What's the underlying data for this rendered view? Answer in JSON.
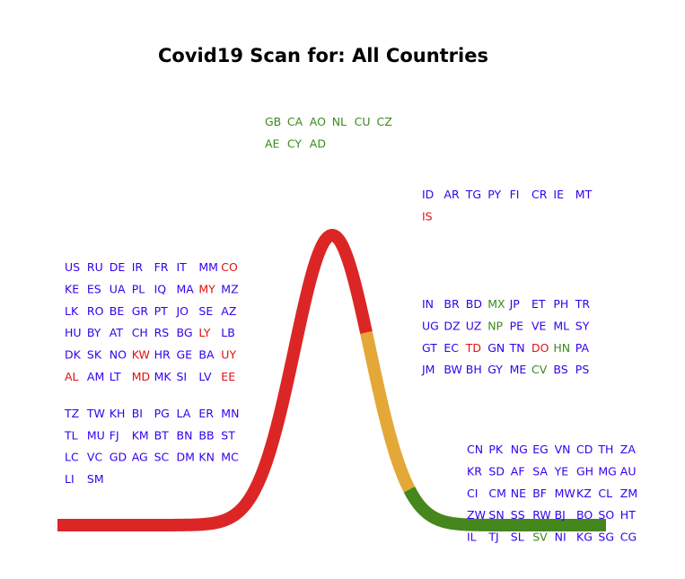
{
  "colors": {
    "rising": "#dc2626",
    "peak_descent": "#e3a837",
    "tail": "#45861d",
    "code_default": "#3300ee",
    "code_red": "#e01010",
    "code_green": "#3a8a1a"
  },
  "chart_data": {
    "type": "scatter",
    "title": "Covid19 Scan for: All Countries",
    "xlabel": "",
    "ylabel": "",
    "curve": {
      "shape": "epidemic-curve",
      "segments": [
        {
          "stage": "rising",
          "color": "#dc2626"
        },
        {
          "stage": "peak_descent",
          "color": "#e3a837"
        },
        {
          "stage": "tail",
          "color": "#45861d"
        }
      ]
    },
    "groups": [
      {
        "stage": "baseline-left",
        "columns": 8,
        "codes": [
          {
            "c": "US",
            "k": "b"
          },
          {
            "c": "RU",
            "k": "b"
          },
          {
            "c": "DE",
            "k": "b"
          },
          {
            "c": "IR",
            "k": "b"
          },
          {
            "c": "FR",
            "k": "b"
          },
          {
            "c": "IT",
            "k": "b"
          },
          {
            "c": "MM",
            "k": "b"
          },
          {
            "c": "CO",
            "k": "r"
          },
          {
            "c": "KE",
            "k": "b"
          },
          {
            "c": "ES",
            "k": "b"
          },
          {
            "c": "UA",
            "k": "b"
          },
          {
            "c": "PL",
            "k": "b"
          },
          {
            "c": "IQ",
            "k": "b"
          },
          {
            "c": "MA",
            "k": "b"
          },
          {
            "c": "MY",
            "k": "r"
          },
          {
            "c": "MZ",
            "k": "b"
          },
          {
            "c": "LK",
            "k": "b"
          },
          {
            "c": "RO",
            "k": "b"
          },
          {
            "c": "BE",
            "k": "b"
          },
          {
            "c": "GR",
            "k": "b"
          },
          {
            "c": "PT",
            "k": "b"
          },
          {
            "c": "JO",
            "k": "b"
          },
          {
            "c": "SE",
            "k": "b"
          },
          {
            "c": "AZ",
            "k": "b"
          },
          {
            "c": "HU",
            "k": "b"
          },
          {
            "c": "BY",
            "k": "b"
          },
          {
            "c": "AT",
            "k": "b"
          },
          {
            "c": "CH",
            "k": "b"
          },
          {
            "c": "RS",
            "k": "b"
          },
          {
            "c": "BG",
            "k": "b"
          },
          {
            "c": "LY",
            "k": "r"
          },
          {
            "c": "LB",
            "k": "b"
          },
          {
            "c": "DK",
            "k": "b"
          },
          {
            "c": "SK",
            "k": "b"
          },
          {
            "c": "NO",
            "k": "b"
          },
          {
            "c": "KW",
            "k": "r"
          },
          {
            "c": "HR",
            "k": "b"
          },
          {
            "c": "GE",
            "k": "b"
          },
          {
            "c": "BA",
            "k": "b"
          },
          {
            "c": "UY",
            "k": "r"
          },
          {
            "c": "AL",
            "k": "r"
          },
          {
            "c": "AM",
            "k": "b"
          },
          {
            "c": "LT",
            "k": "b"
          },
          {
            "c": "MD",
            "k": "r"
          },
          {
            "c": "MK",
            "k": "b"
          },
          {
            "c": "SI",
            "k": "b"
          },
          {
            "c": "LV",
            "k": "b"
          },
          {
            "c": "EE",
            "k": "r"
          }
        ]
      },
      {
        "stage": "baseline-left-lower",
        "columns": 8,
        "codes": [
          {
            "c": "TZ",
            "k": "b"
          },
          {
            "c": "TW",
            "k": "b"
          },
          {
            "c": "KH",
            "k": "b"
          },
          {
            "c": "BI",
            "k": "b"
          },
          {
            "c": "PG",
            "k": "b"
          },
          {
            "c": "LA",
            "k": "b"
          },
          {
            "c": "ER",
            "k": "b"
          },
          {
            "c": "MN",
            "k": "b"
          },
          {
            "c": "TL",
            "k": "b"
          },
          {
            "c": "MU",
            "k": "b"
          },
          {
            "c": "FJ",
            "k": "b"
          },
          {
            "c": "KM",
            "k": "b"
          },
          {
            "c": "BT",
            "k": "b"
          },
          {
            "c": "BN",
            "k": "b"
          },
          {
            "c": "BB",
            "k": "b"
          },
          {
            "c": "ST",
            "k": "b"
          },
          {
            "c": "LC",
            "k": "b"
          },
          {
            "c": "VC",
            "k": "b"
          },
          {
            "c": "GD",
            "k": "b"
          },
          {
            "c": "AG",
            "k": "b"
          },
          {
            "c": "SC",
            "k": "b"
          },
          {
            "c": "DM",
            "k": "b"
          },
          {
            "c": "KN",
            "k": "b"
          },
          {
            "c": "MC",
            "k": "b"
          },
          {
            "c": "LI",
            "k": "b"
          },
          {
            "c": "SM",
            "k": "b"
          }
        ]
      },
      {
        "stage": "above-peak",
        "columns": 6,
        "codes": [
          {
            "c": "GB",
            "k": "g"
          },
          {
            "c": "CA",
            "k": "g"
          },
          {
            "c": "AO",
            "k": "g"
          },
          {
            "c": "NL",
            "k": "g"
          },
          {
            "c": "CU",
            "k": "g"
          },
          {
            "c": "CZ",
            "k": "g"
          },
          {
            "c": "AE",
            "k": "g"
          },
          {
            "c": "CY",
            "k": "g"
          },
          {
            "c": "AD",
            "k": "g"
          }
        ]
      },
      {
        "stage": "post-peak",
        "columns": 8,
        "codes": [
          {
            "c": "ID",
            "k": "b"
          },
          {
            "c": "AR",
            "k": "b"
          },
          {
            "c": "TG",
            "k": "b"
          },
          {
            "c": "PY",
            "k": "b"
          },
          {
            "c": "FI",
            "k": "b"
          },
          {
            "c": "CR",
            "k": "b"
          },
          {
            "c": "IE",
            "k": "b"
          },
          {
            "c": "MT",
            "k": "b"
          },
          {
            "c": "IS",
            "k": "r"
          }
        ]
      },
      {
        "stage": "declining",
        "columns": 8,
        "codes": [
          {
            "c": "IN",
            "k": "b"
          },
          {
            "c": "BR",
            "k": "b"
          },
          {
            "c": "BD",
            "k": "b"
          },
          {
            "c": "MX",
            "k": "g"
          },
          {
            "c": "JP",
            "k": "b"
          },
          {
            "c": "ET",
            "k": "b"
          },
          {
            "c": "PH",
            "k": "b"
          },
          {
            "c": "TR",
            "k": "b"
          },
          {
            "c": "UG",
            "k": "b"
          },
          {
            "c": "DZ",
            "k": "b"
          },
          {
            "c": "UZ",
            "k": "b"
          },
          {
            "c": "NP",
            "k": "g"
          },
          {
            "c": "PE",
            "k": "b"
          },
          {
            "c": "VE",
            "k": "b"
          },
          {
            "c": "ML",
            "k": "b"
          },
          {
            "c": "SY",
            "k": "b"
          },
          {
            "c": "GT",
            "k": "b"
          },
          {
            "c": "EC",
            "k": "b"
          },
          {
            "c": "TD",
            "k": "r"
          },
          {
            "c": "GN",
            "k": "b"
          },
          {
            "c": "TN",
            "k": "b"
          },
          {
            "c": "DO",
            "k": "r"
          },
          {
            "c": "HN",
            "k": "g"
          },
          {
            "c": "PA",
            "k": "b"
          },
          {
            "c": "JM",
            "k": "b"
          },
          {
            "c": "BW",
            "k": "b"
          },
          {
            "c": "BH",
            "k": "b"
          },
          {
            "c": "GY",
            "k": "b"
          },
          {
            "c": "ME",
            "k": "b"
          },
          {
            "c": "CV",
            "k": "g"
          },
          {
            "c": "BS",
            "k": "b"
          },
          {
            "c": "PS",
            "k": "b"
          }
        ]
      },
      {
        "stage": "tail",
        "columns": 8,
        "codes": [
          {
            "c": "CN",
            "k": "b"
          },
          {
            "c": "PK",
            "k": "b"
          },
          {
            "c": "NG",
            "k": "b"
          },
          {
            "c": "EG",
            "k": "b"
          },
          {
            "c": "VN",
            "k": "b"
          },
          {
            "c": "CD",
            "k": "b"
          },
          {
            "c": "TH",
            "k": "b"
          },
          {
            "c": "ZA",
            "k": "b"
          },
          {
            "c": "KR",
            "k": "b"
          },
          {
            "c": "SD",
            "k": "b"
          },
          {
            "c": "AF",
            "k": "b"
          },
          {
            "c": "SA",
            "k": "b"
          },
          {
            "c": "YE",
            "k": "b"
          },
          {
            "c": "GH",
            "k": "b"
          },
          {
            "c": "MG",
            "k": "b"
          },
          {
            "c": "AU",
            "k": "b"
          },
          {
            "c": "CI",
            "k": "b"
          },
          {
            "c": "CM",
            "k": "b"
          },
          {
            "c": "NE",
            "k": "b"
          },
          {
            "c": "BF",
            "k": "b"
          },
          {
            "c": "MW",
            "k": "b"
          },
          {
            "c": "KZ",
            "k": "b"
          },
          {
            "c": "CL",
            "k": "b"
          },
          {
            "c": "ZM",
            "k": "b"
          },
          {
            "c": "ZW",
            "k": "b"
          },
          {
            "c": "SN",
            "k": "b"
          },
          {
            "c": "SS",
            "k": "b"
          },
          {
            "c": "RW",
            "k": "b"
          },
          {
            "c": "BJ",
            "k": "b"
          },
          {
            "c": "BO",
            "k": "b"
          },
          {
            "c": "SO",
            "k": "b"
          },
          {
            "c": "HT",
            "k": "b"
          },
          {
            "c": "IL",
            "k": "b"
          },
          {
            "c": "TJ",
            "k": "b"
          },
          {
            "c": "SL",
            "k": "b"
          },
          {
            "c": "SV",
            "k": "g"
          },
          {
            "c": "NI",
            "k": "b"
          },
          {
            "c": "KG",
            "k": "b"
          },
          {
            "c": "SG",
            "k": "b"
          },
          {
            "c": "CG",
            "k": "b"
          }
        ]
      }
    ]
  }
}
